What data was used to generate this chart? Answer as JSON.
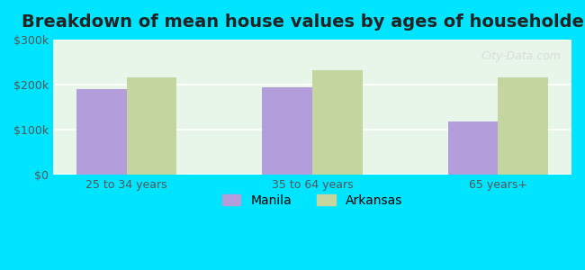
{
  "title": "Breakdown of mean house values by ages of householders",
  "categories": [
    "25 to 34 years",
    "35 to 64 years",
    "65 years+"
  ],
  "manila_values": [
    190000,
    193000,
    118000
  ],
  "arkansas_values": [
    215000,
    232000,
    215000
  ],
  "manila_color": "#b39ddb",
  "arkansas_color": "#c5d5a0",
  "ylim": [
    0,
    300000
  ],
  "yticks": [
    0,
    100000,
    200000,
    300000
  ],
  "ytick_labels": [
    "$0",
    "$100k",
    "$200k",
    "$300k"
  ],
  "background_color": "#00e5ff",
  "plot_bg_color": "#e8f5e9",
  "legend_labels": [
    "Manila",
    "Arkansas"
  ],
  "bar_width": 0.35,
  "title_fontsize": 14,
  "tick_fontsize": 9,
  "legend_fontsize": 10
}
